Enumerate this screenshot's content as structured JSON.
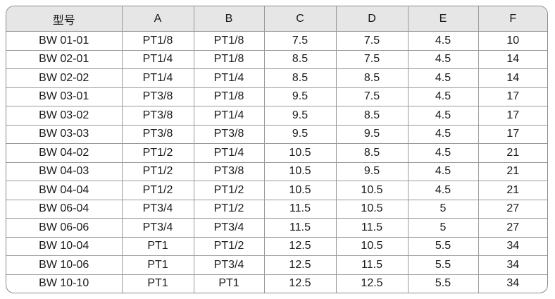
{
  "table": {
    "header": [
      "型号",
      "A",
      "B",
      "C",
      "D",
      "E",
      "F"
    ],
    "rows": [
      [
        "BW 01-01",
        "PT1/8",
        "PT1/8",
        "7.5",
        "7.5",
        "4.5",
        "10"
      ],
      [
        "BW 02-01",
        "PT1/4",
        "PT1/8",
        "8.5",
        "7.5",
        "4.5",
        "14"
      ],
      [
        "BW 02-02",
        "PT1/4",
        "PT1/4",
        "8.5",
        "8.5",
        "4.5",
        "14"
      ],
      [
        "BW 03-01",
        "PT3/8",
        "PT1/8",
        "9.5",
        "7.5",
        "4.5",
        "17"
      ],
      [
        "BW 03-02",
        "PT3/8",
        "PT1/4",
        "9.5",
        "8.5",
        "4.5",
        "17"
      ],
      [
        "BW 03-03",
        "PT3/8",
        "PT3/8",
        "9.5",
        "9.5",
        "4.5",
        "17"
      ],
      [
        "BW 04-02",
        "PT1/2",
        "PT1/4",
        "10.5",
        "8.5",
        "4.5",
        "21"
      ],
      [
        "BW 04-03",
        "PT1/2",
        "PT3/8",
        "10.5",
        "9.5",
        "4.5",
        "21"
      ],
      [
        "BW 04-04",
        "PT1/2",
        "PT1/2",
        "10.5",
        "10.5",
        "4.5",
        "21"
      ],
      [
        "BW 06-04",
        "PT3/4",
        "PT1/2",
        "11.5",
        "10.5",
        "5",
        "27"
      ],
      [
        "BW 06-06",
        "PT3/4",
        "PT3/4",
        "11.5",
        "11.5",
        "5",
        "27"
      ],
      [
        "BW 10-04",
        "PT1",
        "PT1/2",
        "12.5",
        "10.5",
        "5.5",
        "34"
      ],
      [
        "BW 10-06",
        "PT1",
        "PT3/4",
        "12.5",
        "11.5",
        "5.5",
        "34"
      ],
      [
        "BW 10-10",
        "PT1",
        "PT1",
        "12.5",
        "12.5",
        "5.5",
        "34"
      ]
    ]
  }
}
